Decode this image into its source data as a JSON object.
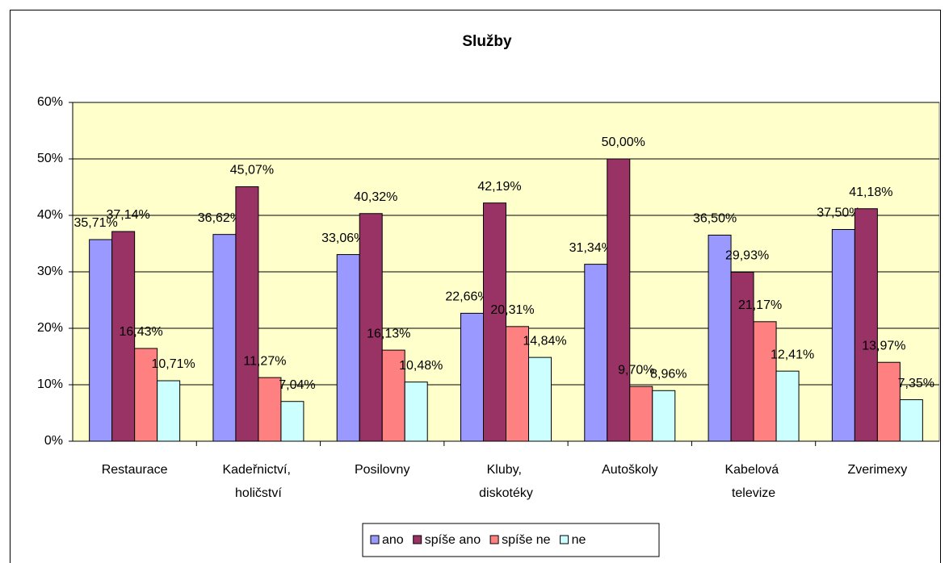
{
  "chart_data": {
    "type": "bar",
    "title": "Služby",
    "categories": [
      "Restaurace",
      "Kadeřnictví, holičství",
      "Posilovny",
      "Kluby, diskotéky",
      "Autoškoly",
      "Kabelová televize",
      "Zverimexy"
    ],
    "series": [
      {
        "name": "ano",
        "color": "#9999ff",
        "values": [
          35.71,
          36.62,
          33.06,
          22.66,
          31.34,
          36.5,
          37.5
        ],
        "value_labels": [
          "35,71%",
          "36,62%",
          "33,06%",
          "22,66%",
          "31,34%",
          "36,50%",
          "37,50%"
        ]
      },
      {
        "name": "spíše ano",
        "color": "#993366",
        "values": [
          37.14,
          45.07,
          40.32,
          42.19,
          50.0,
          29.93,
          41.18
        ],
        "value_labels": [
          "37,14%",
          "45,07%",
          "40,32%",
          "42,19%",
          "50,00%",
          "29,93%",
          "41,18%"
        ]
      },
      {
        "name": "spíše ne",
        "color": "#ff8080",
        "values": [
          16.43,
          11.27,
          16.13,
          20.31,
          9.7,
          21.17,
          13.97
        ],
        "value_labels": [
          "16,43%",
          "11,27%",
          "16,13%",
          "20,31%",
          "9,70%",
          "21,17%",
          "13,97%"
        ]
      },
      {
        "name": "ne",
        "color": "#ccffff",
        "values": [
          10.71,
          7.04,
          10.48,
          14.84,
          8.96,
          12.41,
          7.35
        ],
        "value_labels": [
          "10,71%",
          "7,04%",
          "10,48%",
          "14,84%",
          "8,96%",
          "12,41%",
          "7,35%"
        ]
      }
    ],
    "ylim": [
      0,
      60
    ],
    "yticks": [
      {
        "value": 0,
        "label": "0%"
      },
      {
        "value": 10,
        "label": "10%"
      },
      {
        "value": 20,
        "label": "20%"
      },
      {
        "value": 30,
        "label": "30%"
      },
      {
        "value": 40,
        "label": "40%"
      },
      {
        "value": 50,
        "label": "50%"
      },
      {
        "value": 60,
        "label": "60%"
      }
    ],
    "grid": true,
    "legend": "bottom",
    "plot_background": "#ffffcc"
  }
}
